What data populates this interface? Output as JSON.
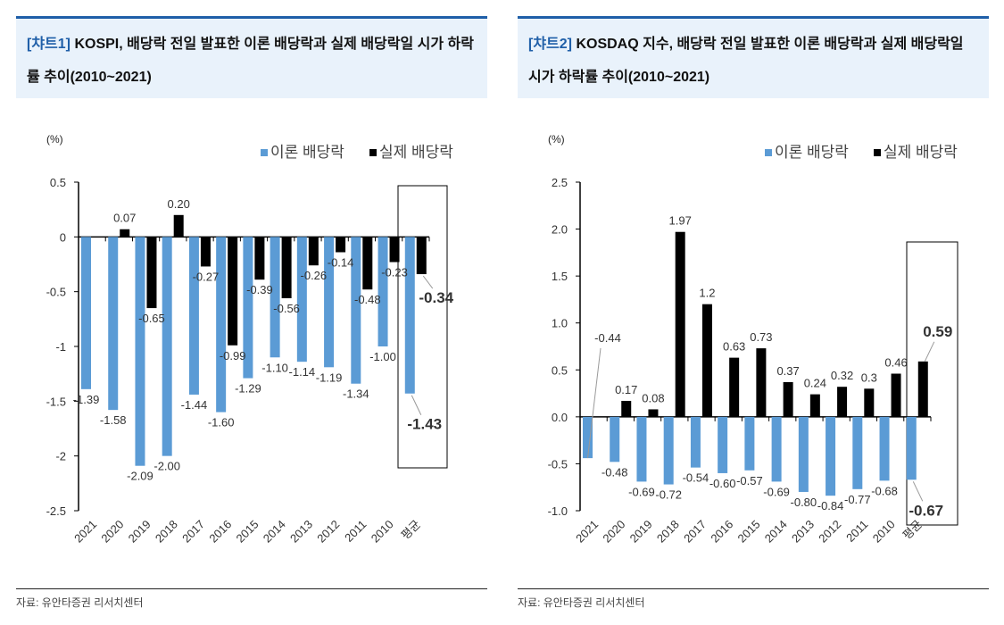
{
  "panels": [
    {
      "tag": "[챠트1]",
      "title": "KOSPI, 배당락 전일 발표한 이론 배당락과 실제 배당락일 시가 하락률 추이(2010~2021)",
      "source": "자료: 유안타증권 리서치센터"
    },
    {
      "tag": "[챠트2]",
      "title": "KOSDAQ 지수, 배당락 전일 발표한 이론 배당락과 실제 배당락일 시가 하락률 추이(2010~2021)",
      "source": "자료: 유안타증권 리서치센터"
    }
  ],
  "colors": {
    "theory": "#5b9bd5",
    "actual": "#000000",
    "accent": "#1f5fa8"
  },
  "chart_data": [
    {
      "type": "bar",
      "unit": "(%)",
      "categories": [
        "2021",
        "2020",
        "2019",
        "2018",
        "2017",
        "2016",
        "2015",
        "2014",
        "2013",
        "2012",
        "2011",
        "2010",
        "평균"
      ],
      "ylim": [
        -2.5,
        0.5
      ],
      "yticks": [
        "0.5",
        "0",
        "-0.5",
        "-1",
        "-1.5",
        "-2",
        "-2.5"
      ],
      "ytick_values": [
        0.5,
        0,
        -0.5,
        -1,
        -1.5,
        -2,
        -2.5
      ],
      "legend_position": "top-right",
      "highlight": "평균",
      "series": [
        {
          "name": "이론 배당락",
          "labels": [
            "-1.39",
            "-1.58",
            "-2.09",
            "-2.00",
            "-1.44",
            "-1.60",
            "-1.29",
            "-1.10",
            "-1.14",
            "-1.19",
            "-1.34",
            "-1.00",
            "-1.43"
          ],
          "values": [
            -1.39,
            -1.58,
            -2.09,
            -2.0,
            -1.44,
            -1.6,
            -1.29,
            -1.1,
            -1.14,
            -1.19,
            -1.34,
            -1.0,
            -1.43
          ]
        },
        {
          "name": "실제 배당락",
          "labels": [
            null,
            "0.07",
            "-0.65",
            "0.20",
            "-0.27",
            "-0.99",
            "-0.39",
            "-0.56",
            "-0.26",
            "-0.14",
            "-0.48",
            "-0.23",
            "-0.34"
          ],
          "values": [
            null,
            0.07,
            -0.65,
            0.2,
            -0.27,
            -0.99,
            -0.39,
            -0.56,
            -0.26,
            -0.14,
            -0.48,
            -0.23,
            -0.34
          ]
        }
      ]
    },
    {
      "type": "bar",
      "unit": "(%)",
      "categories": [
        "2021",
        "2020",
        "2019",
        "2018",
        "2017",
        "2016",
        "2015",
        "2014",
        "2013",
        "2012",
        "2011",
        "2010",
        "평균"
      ],
      "ylim": [
        -1.0,
        2.5
      ],
      "yticks": [
        "2.5",
        "2.0",
        "1.5",
        "1.0",
        "0.5",
        "0.0",
        "-0.5",
        "-1.0"
      ],
      "ytick_values": [
        2.5,
        2.0,
        1.5,
        1.0,
        0.5,
        0.0,
        -0.5,
        -1.0
      ],
      "legend_position": "top-right",
      "highlight": "평균",
      "series": [
        {
          "name": "이론 배당락",
          "labels": [
            "-0.44",
            "-0.48",
            "-0.69",
            "-0.72",
            "-0.54",
            "-0.60",
            "-0.57",
            "-0.69",
            "-0.80",
            "-0.84",
            "-0.77",
            "-0.68",
            "-0.67"
          ],
          "values": [
            -0.44,
            -0.48,
            -0.69,
            -0.72,
            -0.54,
            -0.6,
            -0.57,
            -0.69,
            -0.8,
            -0.84,
            -0.77,
            -0.68,
            -0.67
          ]
        },
        {
          "name": "실제 배당락",
          "labels": [
            null,
            "0.17",
            "0.08",
            "1.97",
            "1.2",
            "0.63",
            "0.73",
            "0.37",
            "0.24",
            "0.32",
            "0.3",
            "0.46",
            "0.59"
          ],
          "values": [
            null,
            0.17,
            0.08,
            1.97,
            1.2,
            0.63,
            0.73,
            0.37,
            0.24,
            0.32,
            0.3,
            0.46,
            0.59
          ]
        }
      ]
    }
  ]
}
